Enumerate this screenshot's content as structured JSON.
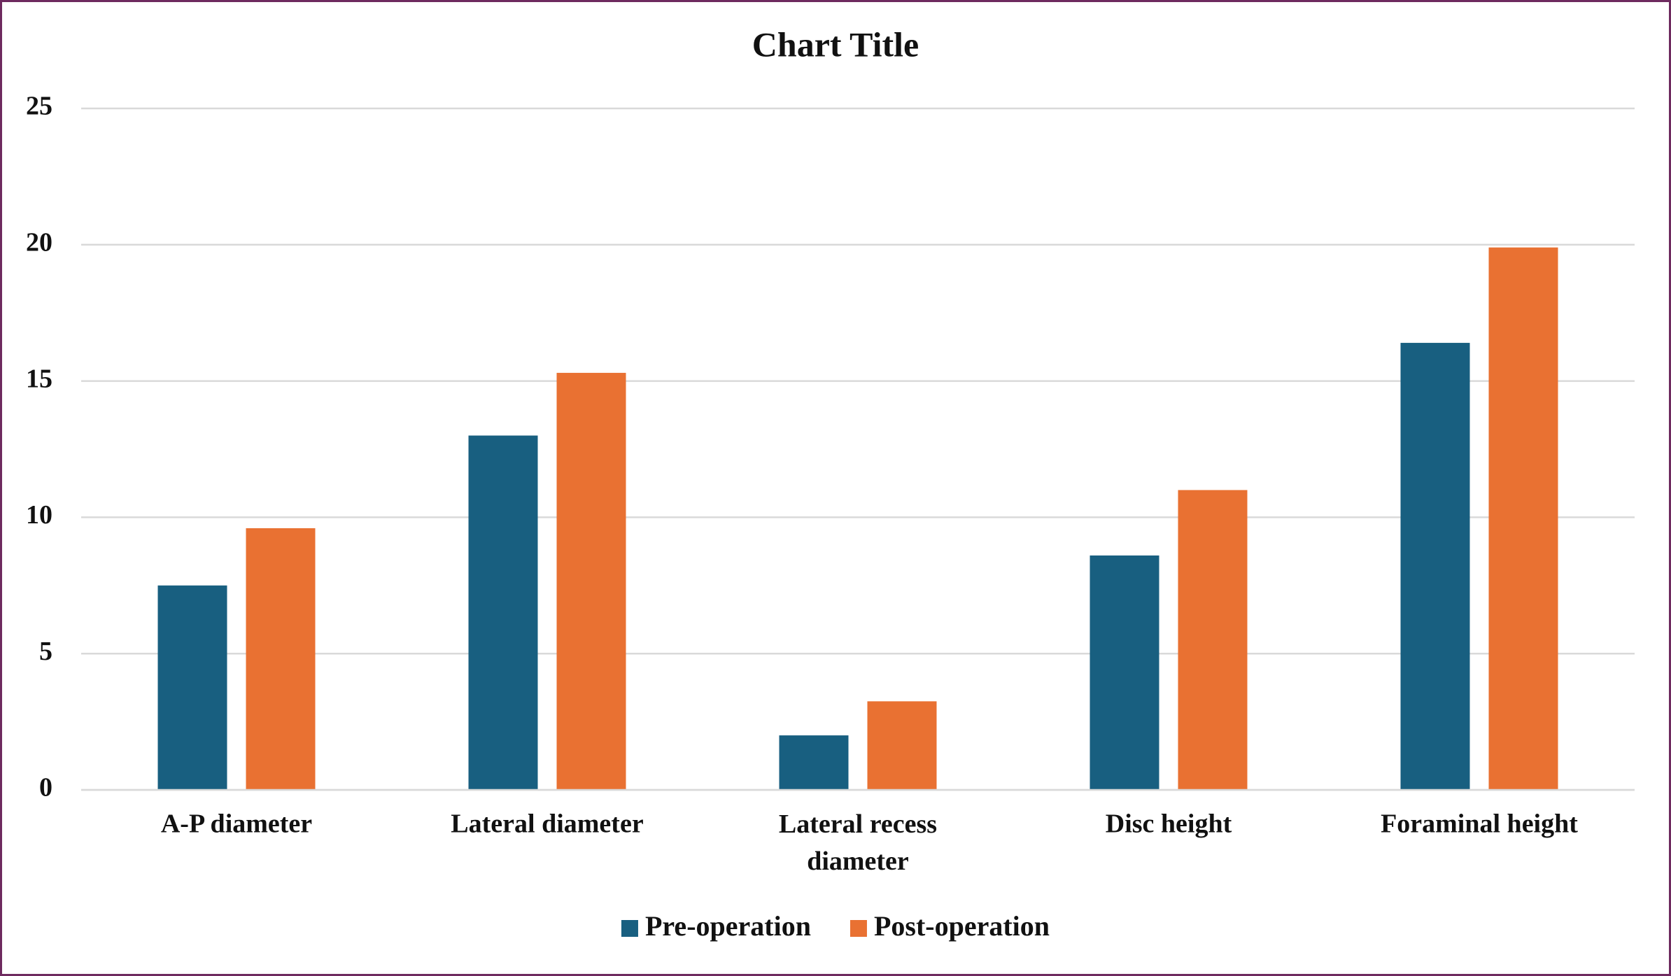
{
  "chart_data": {
    "type": "bar",
    "title": "Chart Title",
    "categories": [
      "A-P diameter",
      "Lateral diameter",
      "Lateral recess diameter",
      "Disc height",
      "Foraminal height"
    ],
    "series": [
      {
        "name": "Pre-operation",
        "color": "#185f80",
        "values": [
          7.5,
          13.0,
          2.0,
          8.6,
          16.4
        ]
      },
      {
        "name": "Post-operation",
        "color": "#e97132",
        "values": [
          9.6,
          15.3,
          3.25,
          11.0,
          19.9
        ]
      }
    ],
    "ylim": [
      0,
      25
    ],
    "yticks": [
      0,
      5,
      10,
      15,
      20,
      25
    ],
    "grid": true,
    "legend": "bottom"
  }
}
